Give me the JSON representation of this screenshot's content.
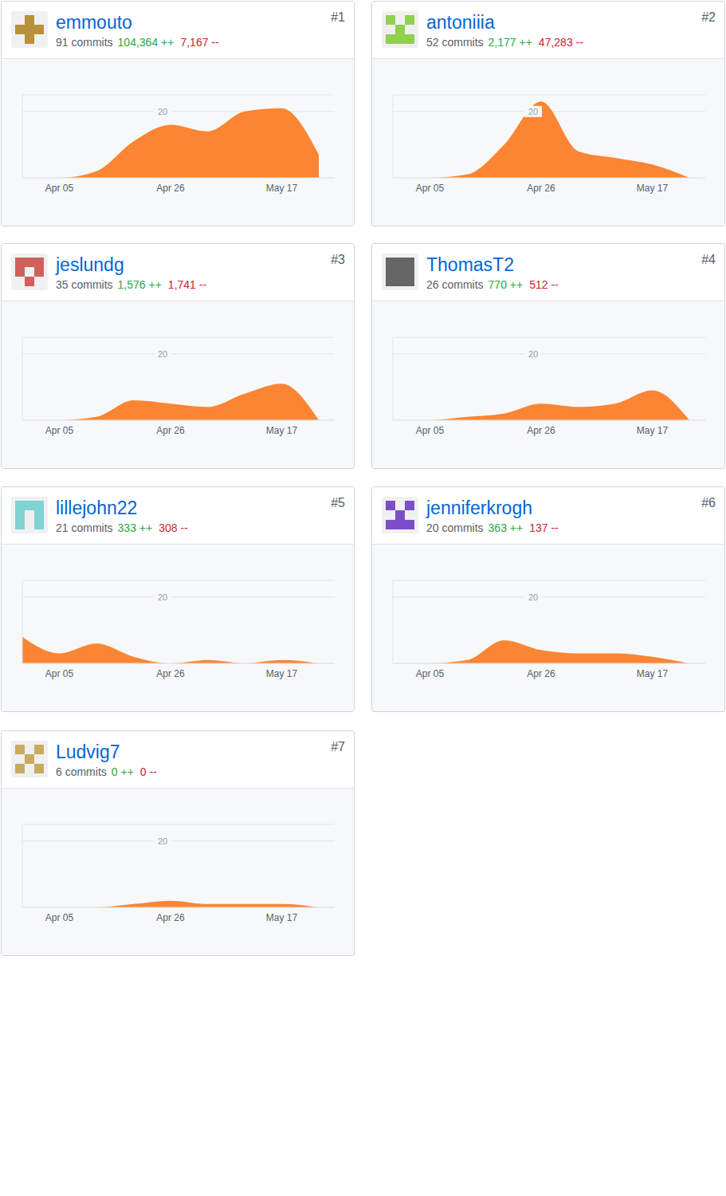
{
  "chart_data": [
    {
      "type": "area",
      "title": "emmouto",
      "rank": "#1",
      "commits": "91 commits",
      "additions": "104,364 ++",
      "deletions": "7,167 --",
      "categories": [
        null,
        "Apr 05",
        null,
        null,
        "Apr 26",
        null,
        null,
        "May 17",
        null
      ],
      "values": [
        0,
        0,
        2,
        11,
        16,
        14,
        20,
        21,
        7
      ],
      "color": "#fb8532",
      "ylim": [
        0,
        25
      ],
      "yticks": [
        20
      ],
      "grid": true
    },
    {
      "type": "area",
      "title": "antoniiia",
      "rank": "#2",
      "commits": "52 commits",
      "additions": "2,177 ++",
      "deletions": "47,283 --",
      "categories": [
        null,
        "Apr 05",
        null,
        null,
        "Apr 26",
        null,
        null,
        "May 17",
        null
      ],
      "values": [
        0,
        0,
        1,
        10,
        23,
        8,
        6,
        4,
        0
      ],
      "color": "#fb8532",
      "ylim": [
        0,
        25
      ],
      "yticks": [
        20
      ],
      "grid": true
    },
    {
      "type": "area",
      "title": "jeslundg",
      "rank": "#3",
      "commits": "35 commits",
      "additions": "1,576 ++",
      "deletions": "1,741 --",
      "categories": [
        null,
        "Apr 05",
        null,
        null,
        "Apr 26",
        null,
        null,
        "May 17",
        null
      ],
      "values": [
        0,
        0,
        1,
        6,
        5,
        4,
        8,
        11,
        0
      ],
      "color": "#fb8532",
      "ylim": [
        0,
        25
      ],
      "yticks": [
        20
      ],
      "grid": true
    },
    {
      "type": "area",
      "title": "ThomasT2",
      "rank": "#4",
      "commits": "26 commits",
      "additions": "770 ++",
      "deletions": "512 --",
      "categories": [
        null,
        "Apr 05",
        null,
        null,
        "Apr 26",
        null,
        null,
        "May 17",
        null
      ],
      "values": [
        0,
        0,
        1,
        2,
        5,
        4,
        5,
        9,
        0
      ],
      "color": "#fb8532",
      "ylim": [
        0,
        25
      ],
      "yticks": [
        20
      ],
      "grid": true
    },
    {
      "type": "area",
      "title": "lillejohn22",
      "rank": "#5",
      "commits": "21 commits",
      "additions": "333 ++",
      "deletions": "308 --",
      "categories": [
        null,
        "Apr 05",
        null,
        null,
        "Apr 26",
        null,
        null,
        "May 17",
        null
      ],
      "values": [
        8,
        3,
        6,
        2,
        0,
        1,
        0,
        1,
        0
      ],
      "color": "#fb8532",
      "ylim": [
        0,
        25
      ],
      "yticks": [
        20
      ],
      "grid": true
    },
    {
      "type": "area",
      "title": "jenniferkrogh",
      "rank": "#6",
      "commits": "20 commits",
      "additions": "363 ++",
      "deletions": "137 --",
      "categories": [
        null,
        "Apr 05",
        null,
        null,
        "Apr 26",
        null,
        null,
        "May 17",
        null
      ],
      "values": [
        0,
        0,
        1,
        7,
        4,
        3,
        3,
        2,
        0
      ],
      "color": "#fb8532",
      "ylim": [
        0,
        25
      ],
      "yticks": [
        20
      ],
      "grid": true
    },
    {
      "type": "area",
      "title": "Ludvig7",
      "rank": "#7",
      "commits": "6 commits",
      "additions": "0 ++",
      "deletions": "0 --",
      "categories": [
        null,
        "Apr 05",
        null,
        null,
        "Apr 26",
        null,
        null,
        "May 17",
        null
      ],
      "values": [
        0,
        0,
        0,
        1,
        2,
        1,
        1,
        1,
        0
      ],
      "color": "#fb8532",
      "ylim": [
        0,
        25
      ],
      "yticks": [
        20
      ],
      "grid": true
    }
  ]
}
